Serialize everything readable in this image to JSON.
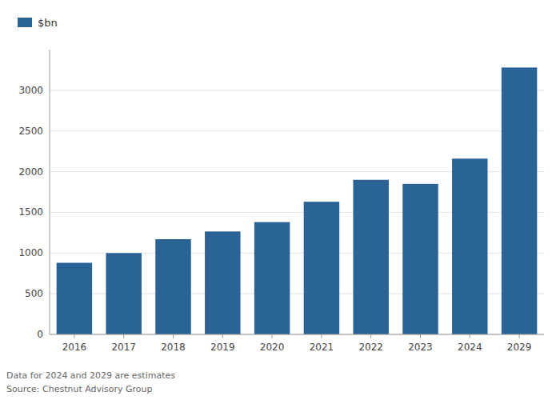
{
  "chart_data": {
    "type": "bar",
    "categories": [
      "2016",
      "2017",
      "2018",
      "2019",
      "2020",
      "2021",
      "2022",
      "2023",
      "2024",
      "2029"
    ],
    "series": [
      {
        "name": "$bn",
        "color": "#2a6496",
        "values": [
          880,
          1000,
          1170,
          1265,
          1380,
          1630,
          1900,
          1850,
          2160,
          3280
        ]
      }
    ],
    "ylim": [
      0,
      3500
    ],
    "yticks": [
      0,
      500,
      1000,
      1500,
      2000,
      2500,
      3000
    ],
    "grid": true,
    "legend": "top-left",
    "annotations": [
      "Data for 2024 and 2029 are estimates",
      "Source: Chestnut Advisory Group"
    ]
  }
}
